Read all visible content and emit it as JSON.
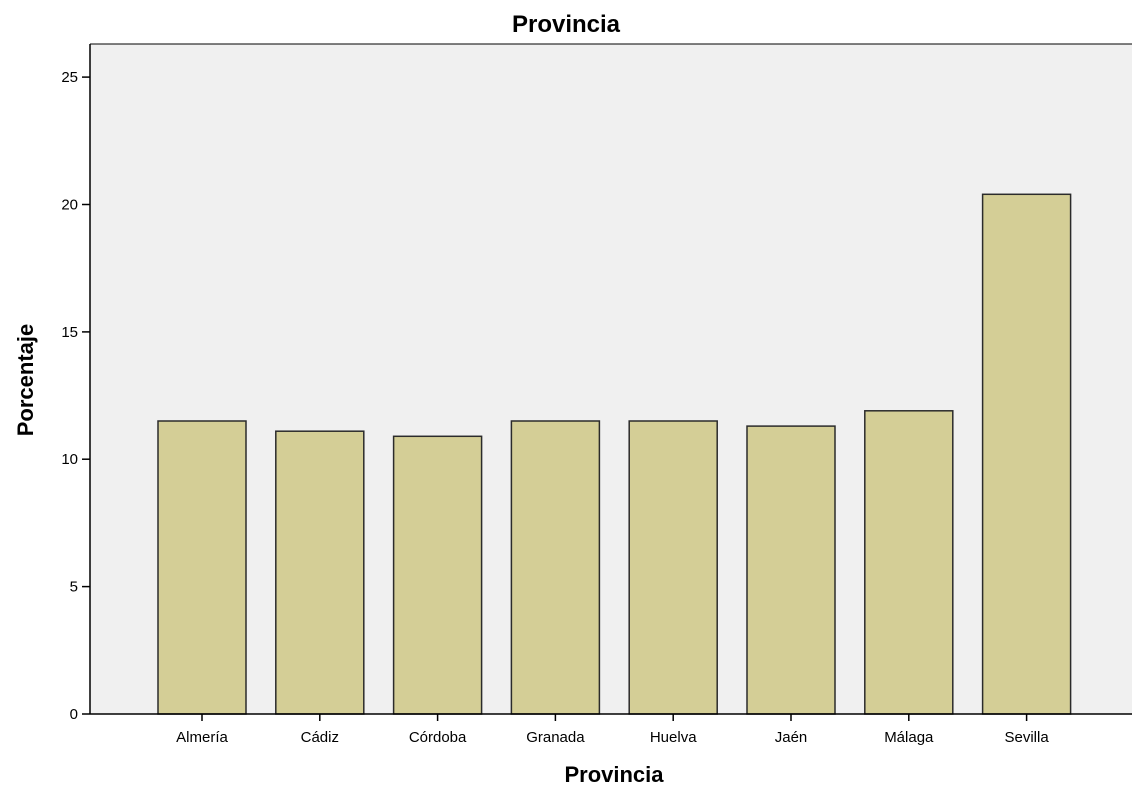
{
  "chart_data": {
    "type": "bar",
    "title": "Provincia",
    "xlabel": "Provincia",
    "ylabel": "Porcentaje",
    "categories": [
      "Almería",
      "Cádiz",
      "Córdoba",
      "Granada",
      "Huelva",
      "Jaén",
      "Málaga",
      "Sevilla"
    ],
    "values": [
      11.5,
      11.1,
      10.9,
      11.5,
      11.5,
      11.3,
      11.9,
      20.4
    ],
    "ylim": [
      0,
      26.3
    ],
    "yticks": [
      0,
      5,
      10,
      15,
      20,
      25
    ],
    "grid": false,
    "legend": "none",
    "colors": {
      "bar_fill": "#d4ce96",
      "bar_stroke": "#2b2b2b",
      "plot_background": "#f0f0f0",
      "page_background": "#ffffff",
      "axis": "#000000"
    }
  }
}
